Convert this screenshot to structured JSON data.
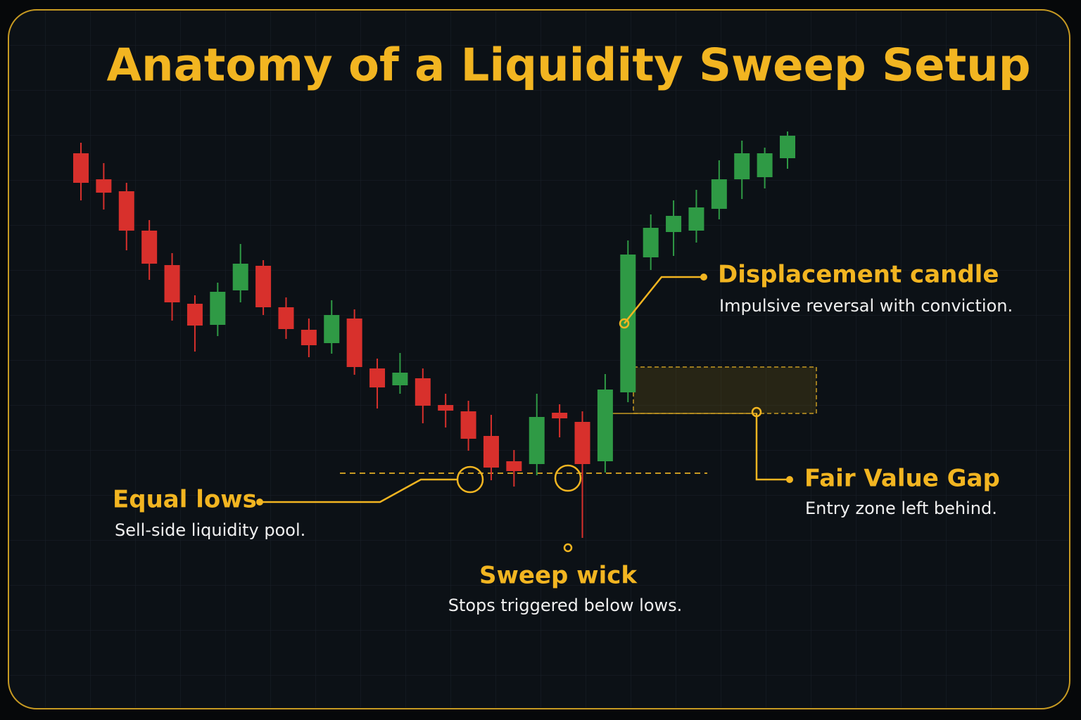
{
  "chart_data": {
    "type": "candlestick",
    "title": "Anatomy of a Liquidity Sweep Setup",
    "categories": [
      null,
      null,
      null,
      null,
      null,
      null,
      null,
      null,
      null,
      null,
      null,
      null,
      null,
      null,
      null,
      null,
      null,
      null,
      null,
      null,
      null,
      null,
      null,
      null,
      null,
      null,
      null,
      null,
      null,
      null,
      null,
      null
    ],
    "open": [
      482,
      445,
      428,
      372,
      323,
      268,
      238,
      287,
      322,
      263,
      231,
      212,
      247,
      176,
      152,
      162,
      124,
      115,
      80,
      44,
      40,
      113,
      100,
      44,
      142,
      334,
      370,
      372,
      403,
      445,
      448,
      475
    ],
    "close": [
      440,
      426,
      372,
      325,
      270,
      237,
      285,
      325,
      263,
      232,
      209,
      252,
      178,
      149,
      170,
      123,
      116,
      76,
      35,
      30,
      107,
      105,
      40,
      146,
      338,
      376,
      393,
      405,
      445,
      482,
      482,
      507
    ],
    "high": [
      497,
      468,
      440,
      387,
      340,
      280,
      298,
      353,
      330,
      277,
      247,
      273,
      260,
      190,
      198,
      176,
      140,
      130,
      110,
      60,
      140,
      125,
      115,
      168,
      358,
      395,
      415,
      430,
      472,
      500,
      490,
      513
    ],
    "low": [
      415,
      402,
      344,
      302,
      244,
      200,
      222,
      270,
      252,
      218,
      192,
      197,
      167,
      119,
      140,
      98,
      92,
      59,
      17,
      8,
      24,
      78,
      -65,
      28,
      128,
      316,
      336,
      355,
      388,
      417,
      432,
      460
    ],
    "up_color": "#2f9a45",
    "down_color": "#d8302c",
    "ylim": [
      -80,
      520
    ],
    "grid": true,
    "annotations": [
      {
        "label": "Equal lows",
        "text": "Sell-side liquidity pool."
      },
      {
        "label": "Sweep wick",
        "text": "Stops triggered below lows."
      },
      {
        "label": "Displacement candle",
        "text": "Impulsive reversal with conviction."
      },
      {
        "label": "Fair Value Gap",
        "text": "Entry zone left behind."
      }
    ]
  }
}
